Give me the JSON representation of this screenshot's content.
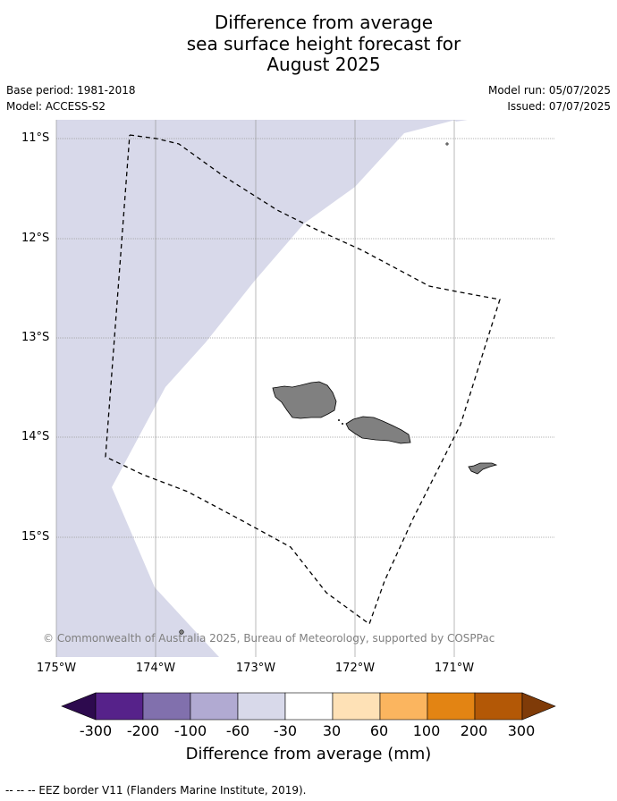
{
  "title": {
    "line1": "Difference from average",
    "line2": "sea surface height forecast for",
    "line3": "August 2025"
  },
  "meta": {
    "base_period": "Base period: 1981-2018",
    "model": "Model: ACCESS-S2",
    "model_run": "Model run: 05/07/2025",
    "issued": "Issued: 07/07/2025"
  },
  "axes": {
    "lat_labels": [
      "11°S",
      "12°S",
      "13°S",
      "14°S",
      "15°S"
    ],
    "lon_labels": [
      "175°W",
      "174°W",
      "173°W",
      "172°W",
      "171°W"
    ]
  },
  "copyright": "© Commonwealth of Australia 2025, Bureau of Meteorology, supported by COSPPac",
  "colorbar": {
    "label": "Difference from average (mm)",
    "ticks": [
      "-300",
      "-200",
      "-100",
      "-60",
      "-30",
      "30",
      "60",
      "100",
      "200",
      "300"
    ],
    "colors": [
      "#2d0a4e",
      "#56228a",
      "#8170ad",
      "#b1aad2",
      "#d8d9ea",
      "#ffffff",
      "#fee1b6",
      "#fbb55f",
      "#e38413",
      "#b35806",
      "#7f3b08"
    ],
    "map_fill": "#d8d9ea",
    "land_fill": "#808080"
  },
  "legend": {
    "eez": "--  --  -- EEZ border V11 (Flanders Marine Institute, 2019)."
  }
}
